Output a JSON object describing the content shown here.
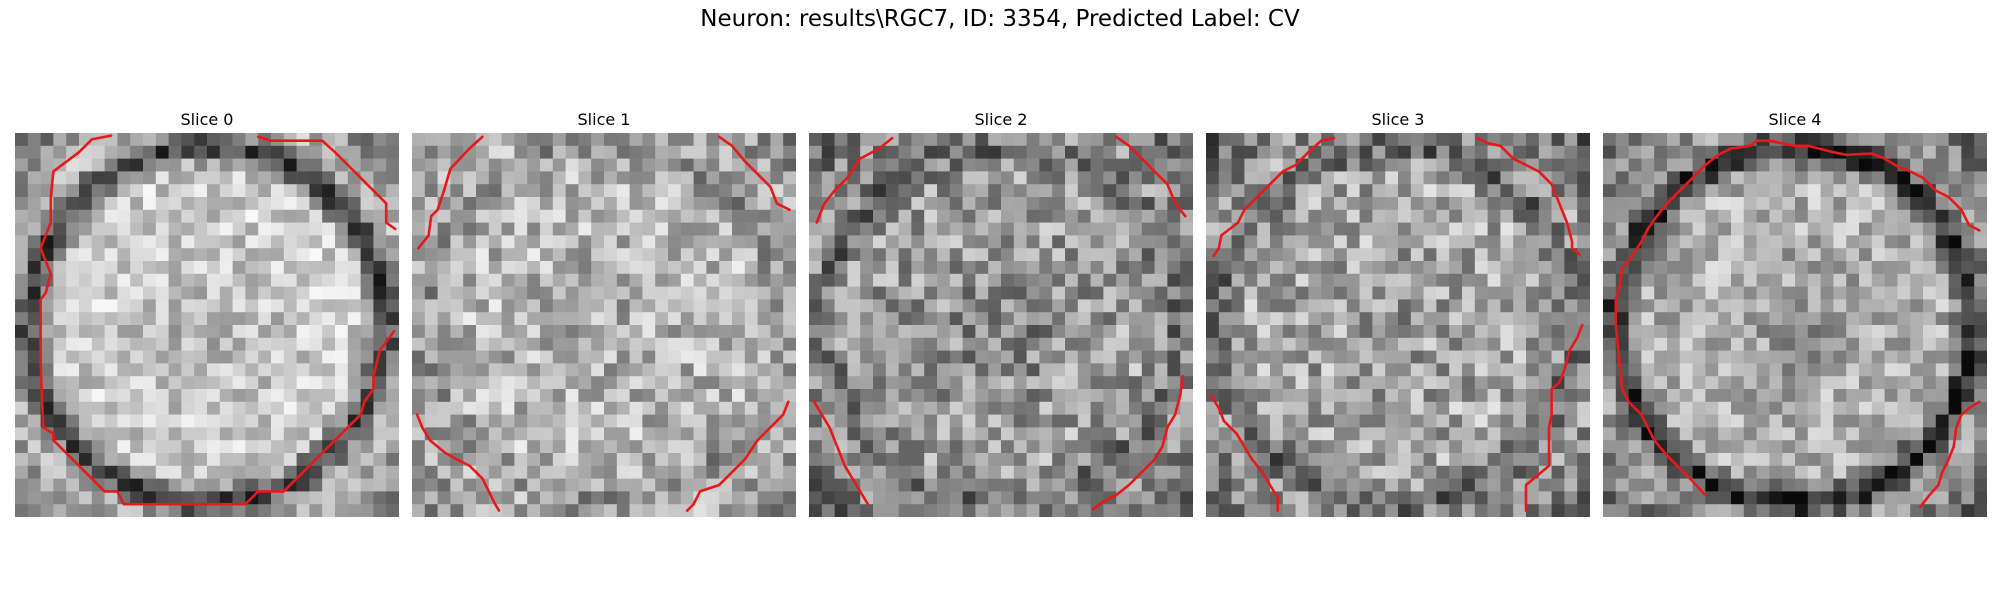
{
  "figure": {
    "title": "Neuron: results\\RGC7, ID: 3354, Predicted Label: CV",
    "contour_color": "#e8191a",
    "colormap": "gray"
  },
  "panels": [
    {
      "title": "Slice 0",
      "image": "grayscale-micrograph-cell-slice",
      "description_name": "slice-0"
    },
    {
      "title": "Slice 1",
      "image": "grayscale-micrograph-cell-slice",
      "description_name": "slice-1"
    },
    {
      "title": "Slice 2",
      "image": "grayscale-micrograph-cell-slice",
      "description_name": "slice-2"
    },
    {
      "title": "Slice 3",
      "image": "grayscale-micrograph-cell-slice",
      "description_name": "slice-3"
    },
    {
      "title": "Slice 4",
      "image": "grayscale-micrograph-cell-slice",
      "description_name": "slice-4"
    }
  ]
}
